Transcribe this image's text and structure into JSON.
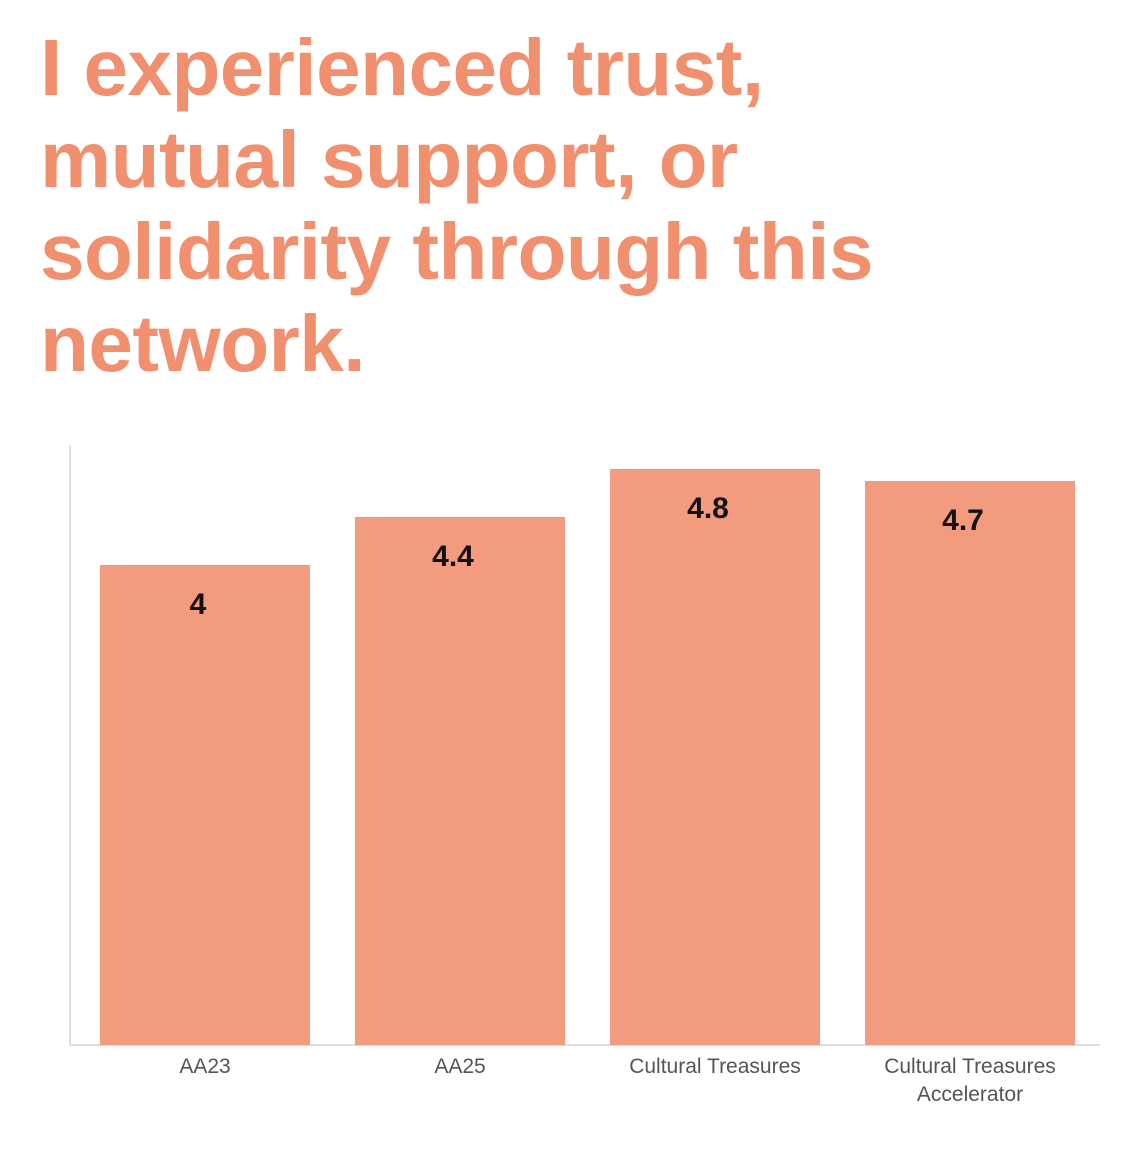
{
  "chart_data": {
    "type": "bar",
    "title": "I experienced trust, mutual support, or solidarity through this network.",
    "categories": [
      "AA23",
      "AA25",
      "Cultural Treasures",
      "Cultural Treasures Accelerator"
    ],
    "values": [
      4,
      4.4,
      4.8,
      4.7
    ],
    "color": "#f29b7f",
    "ylim": [
      0,
      5
    ]
  }
}
